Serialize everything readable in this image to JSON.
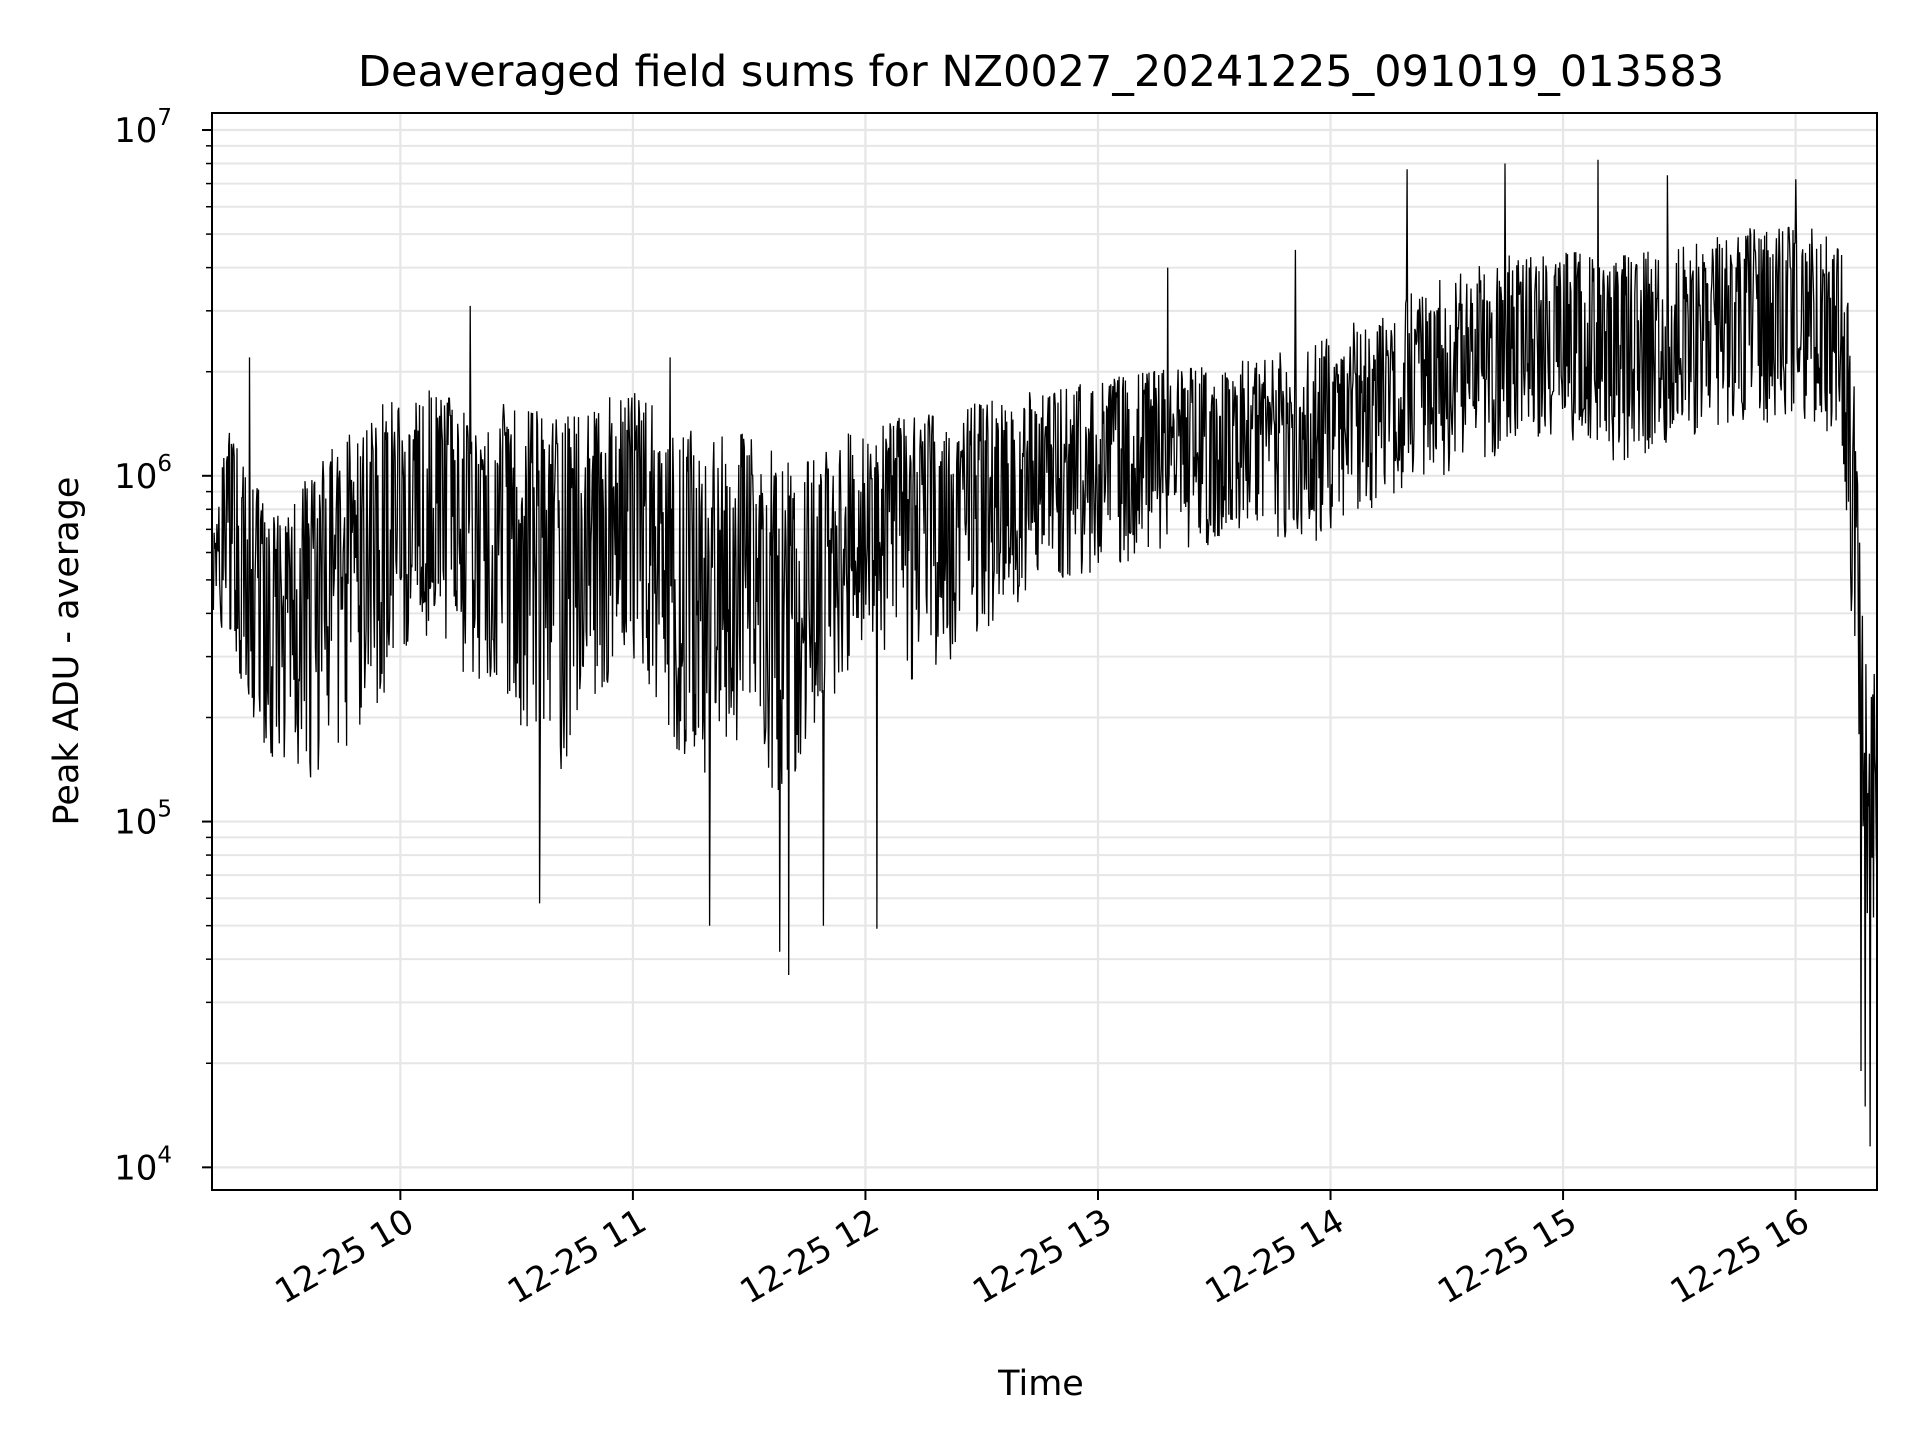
{
  "chart_data": {
    "type": "line",
    "title": "Deaveraged field sums for NZ0027_20241225_091019_013583",
    "xlabel": "Time",
    "ylabel": "Peak ADU - average",
    "yscale": "log",
    "grid": true,
    "line_color": "#000000",
    "grid_color": "#e6e6e6",
    "x_ticks": [
      "12-25 10",
      "12-25 11",
      "12-25 12",
      "12-25 13",
      "12-25 14",
      "12-25 15",
      "12-25 16"
    ],
    "x_tick_hours": [
      10,
      11,
      12,
      13,
      14,
      15,
      16
    ],
    "xlim_hours": [
      9.19,
      16.35
    ],
    "y_ticks": [
      {
        "base": "10",
        "exp": "4",
        "value": 10000
      },
      {
        "base": "10",
        "exp": "5",
        "value": 100000
      },
      {
        "base": "10",
        "exp": "6",
        "value": 1000000
      },
      {
        "base": "10",
        "exp": "7",
        "value": 10000000
      }
    ],
    "ylim": [
      8600,
      11200000
    ],
    "series": [
      {
        "x_hours": [
          9.19,
          9.25,
          9.3,
          9.35,
          9.4,
          9.45,
          9.5,
          9.55,
          9.6,
          9.65,
          9.7,
          9.75,
          9.8,
          9.85,
          9.9,
          9.95,
          10.0,
          10.1,
          10.2,
          10.3,
          10.4,
          10.5,
          10.6,
          10.7,
          10.8,
          10.9,
          11.0,
          11.1,
          11.2,
          11.3,
          11.4,
          11.5,
          11.6,
          11.7,
          11.8,
          11.9,
          12.0,
          12.1,
          12.2,
          12.3,
          12.4,
          12.5,
          12.6,
          12.7,
          12.8,
          12.9,
          13.0,
          13.1,
          13.2,
          13.3,
          13.4,
          13.5,
          13.6,
          13.7,
          13.8,
          13.9,
          14.0,
          14.1,
          14.2,
          14.3,
          14.4,
          14.5,
          14.6,
          14.7,
          14.8,
          14.9,
          15.0,
          15.1,
          15.2,
          15.3,
          15.4,
          15.5,
          15.6,
          15.7,
          15.8,
          15.9,
          16.0,
          16.1,
          16.2,
          16.25,
          16.28,
          16.3,
          16.32,
          16.35
        ],
        "envelope_low": [
          380000,
          350000,
          280000,
          200000,
          160000,
          140000,
          150000,
          120000,
          130000,
          140000,
          150000,
          160000,
          170000,
          180000,
          200000,
          220000,
          300000,
          350000,
          300000,
          250000,
          230000,
          200000,
          150000,
          140000,
          200000,
          250000,
          300000,
          220000,
          150000,
          130000,
          150000,
          200000,
          120000,
          130000,
          200000,
          250000,
          350000,
          300000,
          250000,
          280000,
          300000,
          350000,
          400000,
          450000,
          500000,
          500000,
          520000,
          550000,
          600000,
          600000,
          620000,
          620000,
          650000,
          650000,
          600000,
          600000,
          700000,
          750000,
          800000,
          900000,
          1000000,
          1000000,
          1100000,
          1100000,
          1200000,
          1200000,
          1300000,
          1200000,
          1100000,
          1100000,
          1200000,
          1300000,
          1300000,
          1400000,
          1400000,
          1400000,
          1500000,
          1400000,
          1200000,
          300000,
          150000,
          60000,
          40000,
          50000
        ],
        "envelope_high": [
          600000,
          1500000,
          1200000,
          1000000,
          900000,
          800000,
          850000,
          900000,
          1000000,
          1100000,
          1200000,
          1300000,
          1400000,
          1500000,
          1600000,
          1700000,
          1600000,
          1800000,
          1700000,
          1600000,
          1650000,
          1600000,
          1550000,
          1500000,
          1600000,
          1700000,
          1750000,
          1600000,
          1400000,
          1300000,
          1300000,
          1350000,
          1200000,
          1100000,
          1200000,
          1300000,
          1400000,
          1450000,
          1500000,
          1550000,
          1600000,
          1650000,
          1700000,
          1750000,
          1800000,
          1850000,
          1900000,
          1950000,
          2000000,
          2050000,
          2100000,
          2100000,
          2150000,
          2200000,
          2300000,
          2400000,
          2600000,
          2800000,
          3000000,
          3300000,
          3600000,
          3800000,
          4000000,
          4200000,
          4400000,
          4400000,
          4500000,
          4500000,
          4400000,
          4400000,
          4600000,
          4800000,
          5000000,
          5100000,
          5200000,
          5200000,
          5300000,
          5200000,
          5000000,
          2000000,
          700000,
          400000,
          300000,
          260000
        ],
        "median": [
          480000,
          600000,
          500000,
          420000,
          380000,
          350000,
          380000,
          400000,
          430000,
          480000,
          520000,
          580000,
          620000,
          680000,
          750000,
          820000,
          850000,
          900000,
          850000,
          780000,
          750000,
          700000,
          620000,
          600000,
          700000,
          780000,
          850000,
          700000,
          550000,
          480000,
          500000,
          550000,
          450000,
          430000,
          520000,
          600000,
          700000,
          720000,
          750000,
          780000,
          800000,
          850000,
          900000,
          950000,
          1000000,
          1000000,
          1050000,
          1100000,
          1150000,
          1150000,
          1200000,
          1200000,
          1250000,
          1250000,
          1250000,
          1300000,
          1400000,
          1500000,
          1650000,
          1800000,
          2000000,
          2100000,
          2200000,
          2300000,
          2400000,
          2400000,
          2500000,
          2400000,
          2300000,
          2300000,
          2450000,
          2600000,
          2700000,
          2800000,
          2800000,
          2800000,
          2900000,
          2800000,
          2600000,
          800000,
          300000,
          150000,
          90000,
          100000
        ],
        "spikes": [
          {
            "x_hour": 9.35,
            "value": 2200000
          },
          {
            "x_hour": 10.3,
            "value": 3100000
          },
          {
            "x_hour": 10.6,
            "value": 58000
          },
          {
            "x_hour": 11.16,
            "value": 2200000
          },
          {
            "x_hour": 11.33,
            "value": 50000
          },
          {
            "x_hour": 11.63,
            "value": 42000
          },
          {
            "x_hour": 11.67,
            "value": 36000
          },
          {
            "x_hour": 11.82,
            "value": 50000
          },
          {
            "x_hour": 12.05,
            "value": 49000
          },
          {
            "x_hour": 13.3,
            "value": 4000000
          },
          {
            "x_hour": 13.85,
            "value": 4500000
          },
          {
            "x_hour": 14.33,
            "value": 7700000
          },
          {
            "x_hour": 14.75,
            "value": 8000000
          },
          {
            "x_hour": 15.15,
            "value": 8200000
          },
          {
            "x_hour": 15.45,
            "value": 7400000
          },
          {
            "x_hour": 16.0,
            "value": 7200000
          },
          {
            "x_hour": 16.3,
            "value": 15000
          },
          {
            "x_hour": 16.32,
            "value": 11500
          },
          {
            "x_hour": 16.28,
            "value": 19000
          }
        ]
      }
    ]
  }
}
